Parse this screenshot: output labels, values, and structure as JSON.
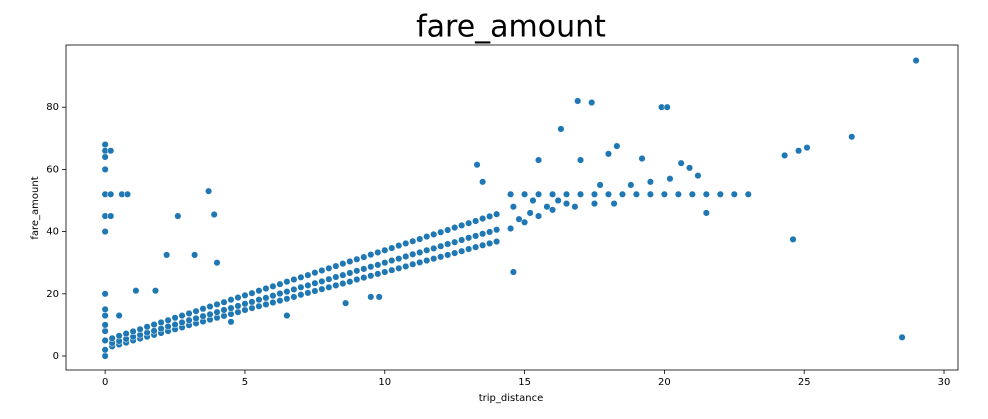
{
  "chart_data": {
    "type": "scatter",
    "title": "fare_amount",
    "x_label": "trip_distance",
    "y_label": "fare_amount",
    "color": "#1f77b4",
    "xlim": [
      -1.4,
      30.5
    ],
    "ylim": [
      -4.5,
      100
    ],
    "xticks": [
      0,
      5,
      10,
      15,
      20,
      25,
      30
    ],
    "yticks": [
      0,
      20,
      40,
      60,
      80
    ],
    "x": [
      0.25,
      0.25,
      0.25,
      0.5,
      0.5,
      0.5,
      0.75,
      0.75,
      0.75,
      1,
      1,
      1,
      1.25,
      1.25,
      1.25,
      1.5,
      1.5,
      1.5,
      1.75,
      1.75,
      1.75,
      2,
      2,
      2,
      2.25,
      2.25,
      2.25,
      2.5,
      2.5,
      2.5,
      2.75,
      2.75,
      2.75,
      3,
      3,
      3,
      3.25,
      3.25,
      3.25,
      3.5,
      3.5,
      3.5,
      3.75,
      3.75,
      3.75,
      4,
      4,
      4,
      4.25,
      4.25,
      4.25,
      4.5,
      4.5,
      4.5,
      4.75,
      4.75,
      4.75,
      5,
      5,
      5,
      5.25,
      5.25,
      5.25,
      5.5,
      5.5,
      5.5,
      5.75,
      5.75,
      5.75,
      6,
      6,
      6,
      6.25,
      6.25,
      6.25,
      6.5,
      6.5,
      6.5,
      6.75,
      6.75,
      6.75,
      7,
      7,
      7,
      7.25,
      7.25,
      7.25,
      7.5,
      7.5,
      7.5,
      7.75,
      7.75,
      7.75,
      8,
      8,
      8,
      8.25,
      8.25,
      8.25,
      8.5,
      8.5,
      8.5,
      8.75,
      8.75,
      8.75,
      9,
      9,
      9,
      9.25,
      9.25,
      9.25,
      9.5,
      9.5,
      9.5,
      9.75,
      9.75,
      9.75,
      10,
      10,
      10,
      10.25,
      10.25,
      10.25,
      10.5,
      10.5,
      10.5,
      10.75,
      10.75,
      10.75,
      11,
      11,
      11,
      11.25,
      11.25,
      11.25,
      11.5,
      11.5,
      11.5,
      11.75,
      11.75,
      11.75,
      12,
      12,
      12,
      12.25,
      12.25,
      12.25,
      12.5,
      12.5,
      12.5,
      12.75,
      12.75,
      12.75,
      13,
      13,
      13,
      13.25,
      13.25,
      13.25,
      13.5,
      13.5,
      13.5,
      13.75,
      13.75,
      13.75,
      14,
      14,
      14,
      14.5,
      14.8,
      15,
      15.2,
      15.5,
      15.8,
      16,
      16.5,
      14.6,
      15.3,
      14.5,
      15,
      15.5,
      16,
      16.5,
      17,
      17.5,
      18,
      18.5,
      19,
      19.5,
      20,
      20.5,
      21,
      21.5,
      22,
      22.5,
      23,
      0,
      0,
      0,
      0,
      0,
      0,
      0,
      0,
      0,
      0,
      0.2,
      0,
      0.2,
      0.6,
      0.8,
      0,
      0,
      0,
      0.2,
      0,
      3.7,
      3.9,
      2.6,
      2.2,
      3.2,
      4,
      1.8,
      1.1,
      0.5,
      4.5,
      6.5,
      8.6,
      9.8,
      9.5,
      14.6,
      13.3,
      13.5,
      15.5,
      16.3,
      16.9,
      17.4,
      17,
      18,
      18.3,
      19.2,
      19.9,
      20.1,
      20.6,
      20.9,
      21.2,
      21.5,
      24.3,
      24.8,
      25.1,
      26.7,
      24.6,
      29,
      28.5,
      19.5,
      20.2,
      18.8,
      17.7,
      16.2,
      16.8,
      17.5,
      18.2
    ],
    "y": [
      3.1,
      4.2,
      5.7,
      3.7,
      4.8,
      6.5,
      4.3,
      5.5,
      7.2,
      5.0,
      6.2,
      7.9,
      5.6,
      6.8,
      8.6,
      6.2,
      7.5,
      9.4,
      6.8,
      8.1,
      10.1,
      7.4,
      8.8,
      10.8,
      8.0,
      9.5,
      11.5,
      8.6,
      10.1,
      12.3,
      9.2,
      10.8,
      13.0,
      9.9,
      11.5,
      13.7,
      10.5,
      12.1,
      14.4,
      11.1,
      12.8,
      15.2,
      11.7,
      13.4,
      15.9,
      12.3,
      14.1,
      16.6,
      12.9,
      14.8,
      17.3,
      13.5,
      15.4,
      18.1,
      14.1,
      16.1,
      18.8,
      14.8,
      16.8,
      19.5,
      15.4,
      17.4,
      20.2,
      16.0,
      18.1,
      21.0,
      16.6,
      18.7,
      21.7,
      17.2,
      19.4,
      22.4,
      17.8,
      20.1,
      23.1,
      18.4,
      20.7,
      23.9,
      19.0,
      21.4,
      24.6,
      19.7,
      22.1,
      25.3,
      20.3,
      22.7,
      26.0,
      20.9,
      23.4,
      26.8,
      21.5,
      24.0,
      27.5,
      22.1,
      24.7,
      28.2,
      22.7,
      25.4,
      28.9,
      23.3,
      26.0,
      29.7,
      23.9,
      26.7,
      30.4,
      24.6,
      27.4,
      31.1,
      25.2,
      28.0,
      31.8,
      25.8,
      28.7,
      32.6,
      26.4,
      29.3,
      33.3,
      27.0,
      30.0,
      34.0,
      27.6,
      30.7,
      34.7,
      28.2,
      31.3,
      35.5,
      28.8,
      32.0,
      36.2,
      29.5,
      32.7,
      36.9,
      30.1,
      33.3,
      37.6,
      30.7,
      34.0,
      38.4,
      31.3,
      34.6,
      39.1,
      31.9,
      35.3,
      39.8,
      32.5,
      36.0,
      40.5,
      33.1,
      36.6,
      41.3,
      33.7,
      37.3,
      42.0,
      34.4,
      38.0,
      42.7,
      35.0,
      38.6,
      43.4,
      35.6,
      39.3,
      44.2,
      36.2,
      39.9,
      44.9,
      36.8,
      40.6,
      45.6,
      41,
      44,
      43,
      46,
      45,
      48,
      47,
      49,
      48,
      50,
      52,
      52,
      52,
      52,
      52,
      52,
      52,
      52,
      52,
      52,
      52,
      52,
      52,
      52,
      52,
      52,
      52,
      52,
      0,
      2,
      5,
      8,
      10,
      13,
      15,
      20,
      40,
      45,
      45,
      52,
      52,
      52,
      52,
      60,
      64,
      66,
      66,
      68,
      53,
      45.5,
      45,
      32.5,
      32.5,
      30,
      21,
      21,
      13,
      11,
      13,
      17,
      19,
      19,
      27,
      61.5,
      56,
      63,
      73,
      82,
      81.5,
      63,
      65,
      67.5,
      63.5,
      80,
      80,
      62,
      60.5,
      58,
      46,
      64.5,
      66,
      67,
      70.5,
      37.5,
      95,
      6,
      56,
      57,
      55,
      55,
      50,
      48,
      49,
      49
    ]
  }
}
